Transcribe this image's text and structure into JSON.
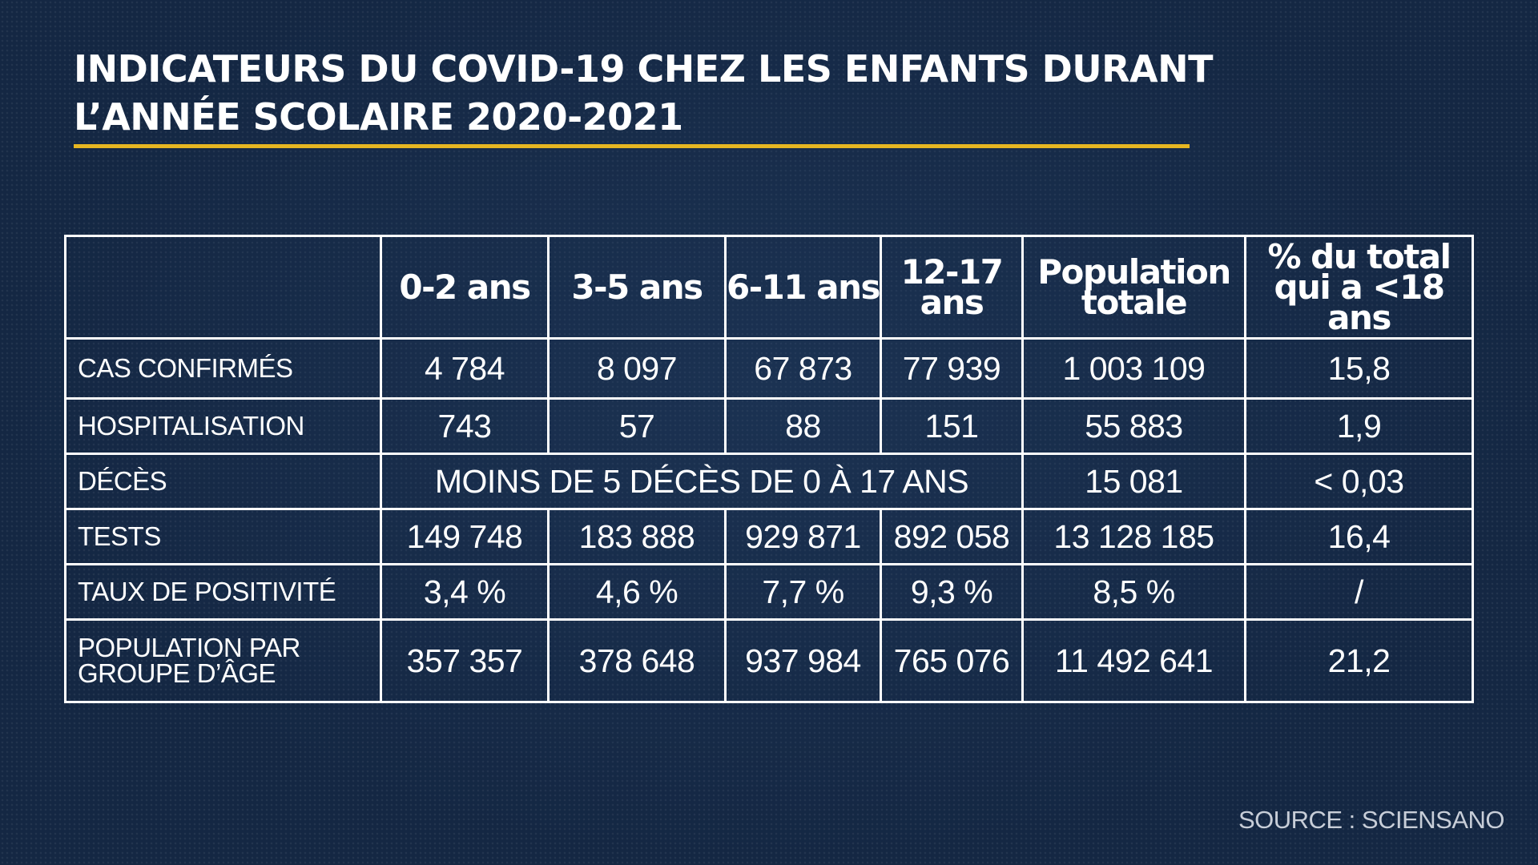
{
  "title": {
    "line1": "INDICATEURS DU COVID-19 CHEZ LES ENFANTS DURANT",
    "line2": "L’ANNÉE SCOLAIRE 2020-2021",
    "accent_color": "#e6b622"
  },
  "table": {
    "headers": [
      "",
      "0-2 ans",
      "3-5 ans",
      "6-11 ans",
      "12-17 ans",
      "Population totale",
      "% du total qui a <18 ans"
    ],
    "rows": [
      {
        "label": "CAS CONFIRMÉS",
        "cells": [
          "4 784",
          "8 097",
          "67 873",
          "77 939",
          "1 003 109",
          "15,8"
        ]
      },
      {
        "label": "HOSPITALISATION",
        "cells": [
          "743",
          "57",
          "88",
          "151",
          "55 883",
          "1,9"
        ]
      },
      {
        "label": "DÉCÈS",
        "merged": "MOINS DE 5 DÉCÈS DE 0 À 17 ANS",
        "cells": [
          "15 081",
          "< 0,03"
        ]
      },
      {
        "label": "TESTS",
        "cells": [
          "149 748",
          "183 888",
          "929 871",
          "892 058",
          "13 128 185",
          "16,4"
        ]
      },
      {
        "label": "TAUX DE POSITIVITÉ",
        "cells": [
          "3,4 %",
          "4,6 %",
          "7,7 %",
          "9,3 %",
          "8,5 %",
          "/"
        ]
      },
      {
        "label": "POPULATION PAR GROUPE D’ÂGE",
        "cells": [
          "357 357",
          "378 648",
          "937 984",
          "765 076",
          "11 492 641",
          "21,2"
        ]
      }
    ]
  },
  "source": "SOURCE :  SCIENSANO",
  "colors": {
    "background": "#142743",
    "text": "#ffffff",
    "border": "#ffffff"
  }
}
